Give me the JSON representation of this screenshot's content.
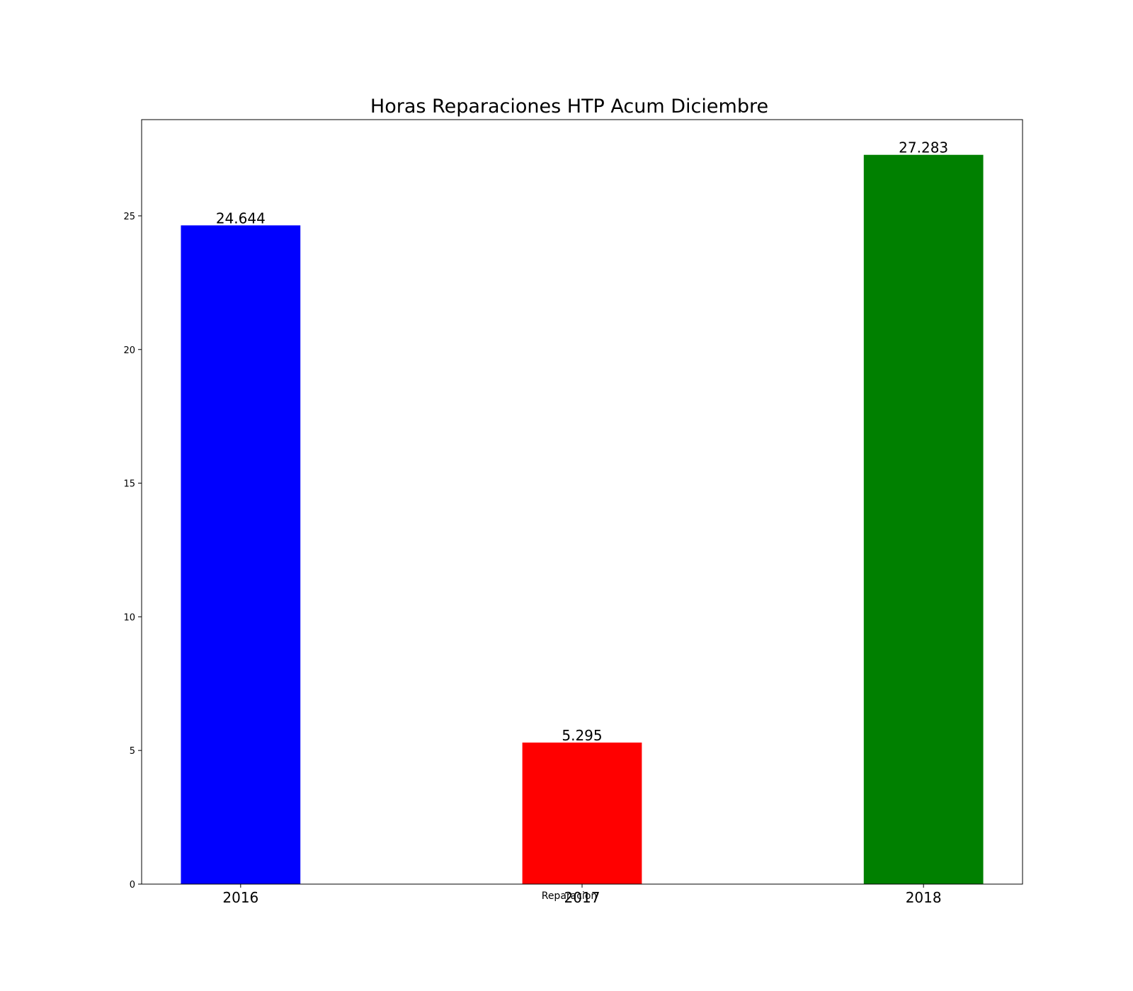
{
  "chart_data": {
    "type": "bar",
    "title": "Horas Reparaciones HTP Acum Diciembre",
    "xlabel": "Reparacion",
    "ylabel": "",
    "categories": [
      "2016",
      "2017",
      "2018"
    ],
    "values": [
      24.644,
      5.295,
      27.283
    ],
    "data_labels": [
      "24.644",
      "5.295",
      "27.283"
    ],
    "colors": [
      "#0000ff",
      "#ff0000",
      "#008000"
    ],
    "ylim": [
      0,
      28.6
    ],
    "yticks": [
      0,
      5,
      10,
      15,
      20,
      25
    ],
    "ytick_labels": [
      "0",
      "5",
      "10",
      "15",
      "20",
      "25"
    ],
    "grid": false,
    "legend": "none"
  }
}
